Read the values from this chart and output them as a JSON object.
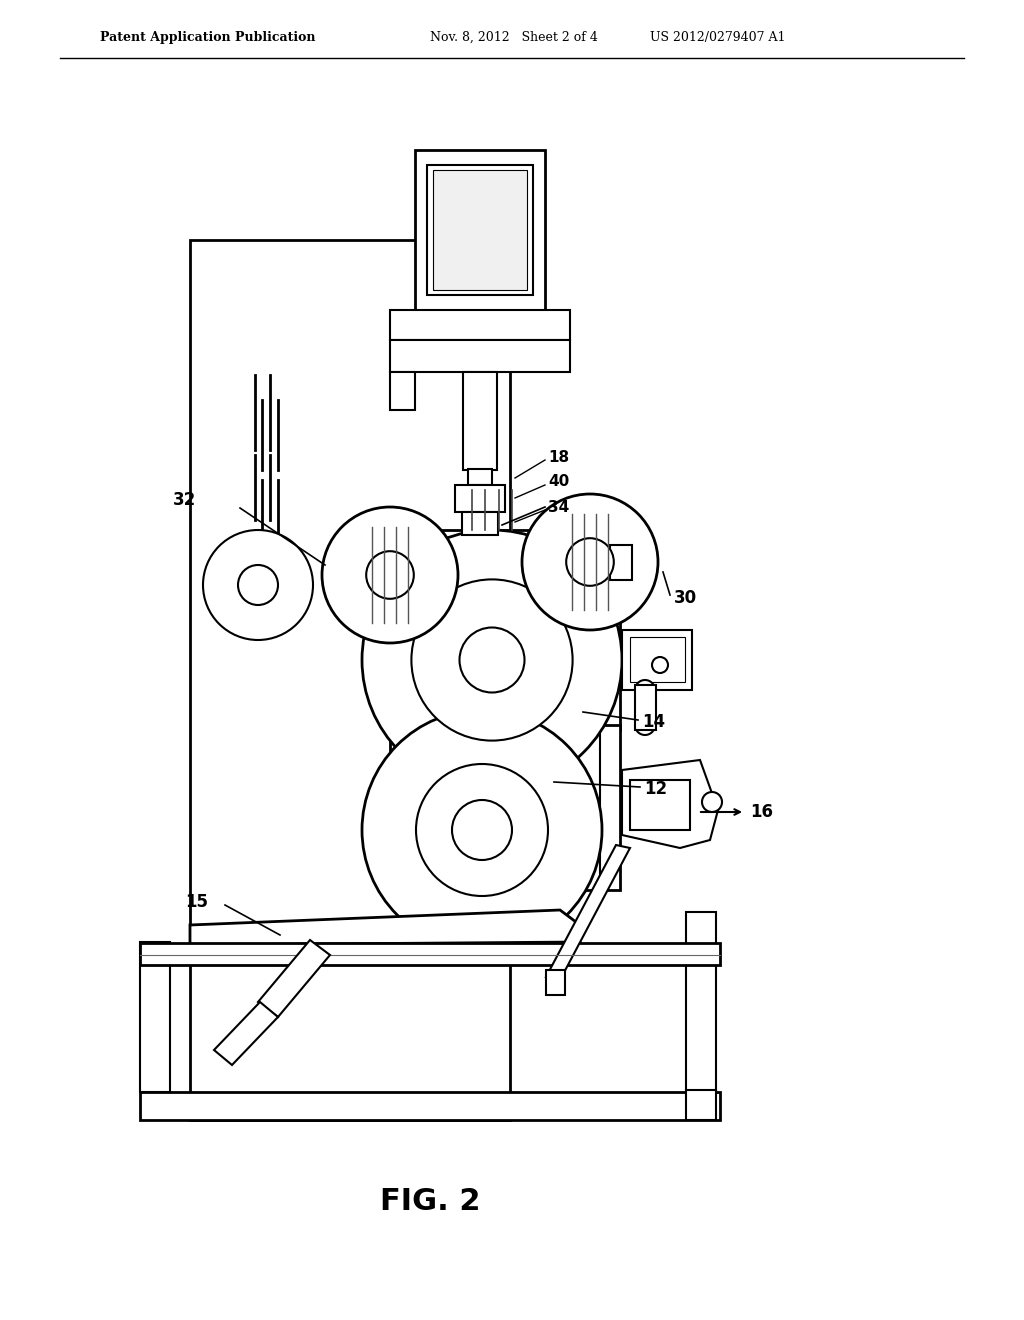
{
  "bg_color": "#ffffff",
  "title_left": "Patent Application Publication",
  "title_mid": "Nov. 8, 2012   Sheet 2 of 4",
  "title_right": "US 2012/0279407 A1",
  "fig_label": "FIG. 2",
  "line_color": "#000000",
  "fill_white": "#ffffff",
  "fill_light": "#f0f0f0",
  "fill_mid": "#e0e0e0",
  "fill_dark": "#c8c8c8"
}
